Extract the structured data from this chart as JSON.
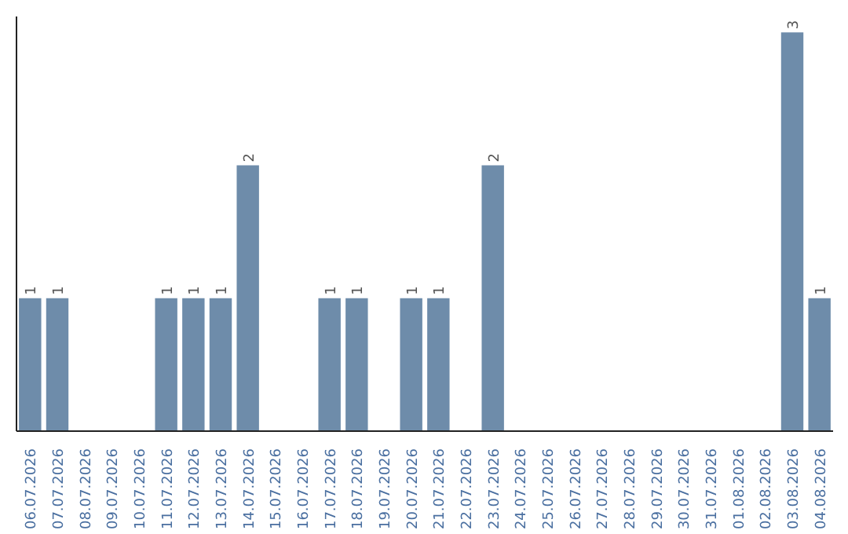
{
  "chart_data": {
    "type": "bar",
    "categories": [
      "06.07.2026",
      "07.07.2026",
      "08.07.2026",
      "09.07.2026",
      "10.07.2026",
      "11.07.2026",
      "12.07.2026",
      "13.07.2026",
      "14.07.2026",
      "15.07.2026",
      "16.07.2026",
      "17.07.2026",
      "18.07.2026",
      "19.07.2026",
      "20.07.2026",
      "21.07.2026",
      "22.07.2026",
      "23.07.2026",
      "24.07.2026",
      "25.07.2026",
      "26.07.2026",
      "27.07.2026",
      "28.07.2026",
      "29.07.2026",
      "30.07.2026",
      "31.07.2026",
      "01.08.2026",
      "02.08.2026",
      "03.08.2026",
      "04.08.2026"
    ],
    "values": [
      1,
      1,
      0,
      0,
      0,
      1,
      1,
      1,
      2,
      0,
      0,
      1,
      1,
      0,
      1,
      1,
      0,
      2,
      0,
      0,
      0,
      0,
      0,
      0,
      0,
      0,
      0,
      0,
      3,
      1
    ],
    "value_labels": [
      "1",
      "1",
      null,
      null,
      null,
      "1",
      "1",
      "1",
      "2",
      null,
      null,
      "1",
      "1",
      null,
      "1",
      "1",
      null,
      "2",
      null,
      null,
      null,
      null,
      null,
      null,
      null,
      null,
      null,
      null,
      "3",
      "1"
    ],
    "color": "#6e8caa",
    "grid": false,
    "tick_labels": "x"
  }
}
